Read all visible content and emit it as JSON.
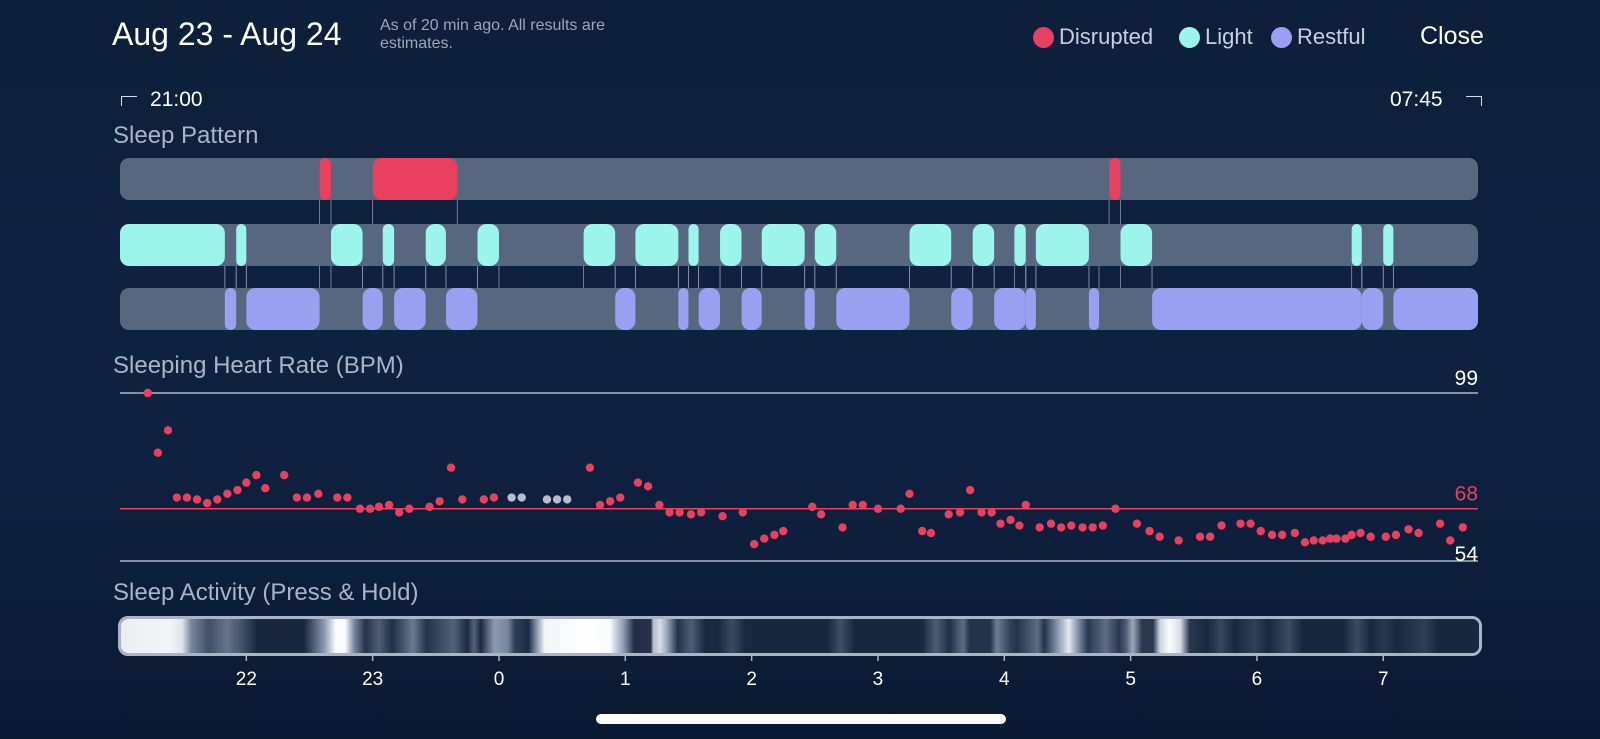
{
  "header": {
    "title": "Aug 23 - Aug 24",
    "note": "As of 20 min ago. All results are estimates.",
    "close_label": "Close"
  },
  "legend": [
    {
      "label": "Disrupted",
      "color": "#e8405e"
    },
    {
      "label": "Light",
      "color": "#9cf5ea"
    },
    {
      "label": "Restful",
      "color": "#9aa0ef"
    }
  ],
  "time_range": {
    "start": "21:00",
    "end": "07:45"
  },
  "sections": {
    "sleep_pattern": "Sleep Pattern",
    "heart_rate": "Sleeping Heart Rate (BPM)",
    "activity": "Sleep Activity (Press & Hold)"
  },
  "chart_data": [
    {
      "type": "timeline",
      "title": "Sleep Pattern",
      "x_range": [
        21.0,
        31.75
      ],
      "rows": [
        {
          "name": "Disrupted",
          "color": "#e8405e",
          "intervals": [
            [
              22.58,
              22.67
            ],
            [
              23.0,
              23.67
            ],
            [
              28.83,
              28.92
            ]
          ]
        },
        {
          "name": "Light",
          "color": "#9cf5ea",
          "intervals": [
            [
              21.0,
              21.83
            ],
            [
              21.92,
              22.0
            ],
            [
              22.67,
              22.92
            ],
            [
              23.08,
              23.17
            ],
            [
              23.42,
              23.58
            ],
            [
              23.83,
              24.0
            ],
            [
              24.67,
              24.92
            ],
            [
              25.08,
              25.42
            ],
            [
              25.5,
              25.58
            ],
            [
              25.75,
              25.92
            ],
            [
              26.08,
              26.42
            ],
            [
              26.5,
              26.67
            ],
            [
              27.25,
              27.58
            ],
            [
              27.75,
              27.92
            ],
            [
              28.08,
              28.17
            ],
            [
              28.25,
              28.67
            ],
            [
              28.92,
              29.17
            ],
            [
              30.75,
              30.83
            ],
            [
              31.0,
              31.08
            ]
          ]
        },
        {
          "name": "Restful",
          "color": "#9aa0ef",
          "intervals": [
            [
              21.83,
              21.92
            ],
            [
              22.0,
              22.58
            ],
            [
              22.92,
              23.08
            ],
            [
              23.17,
              23.42
            ],
            [
              23.58,
              23.83
            ],
            [
              24.92,
              25.08
            ],
            [
              25.42,
              25.5
            ],
            [
              25.58,
              25.75
            ],
            [
              25.92,
              26.08
            ],
            [
              26.42,
              26.5
            ],
            [
              26.67,
              27.25
            ],
            [
              27.58,
              27.75
            ],
            [
              27.92,
              28.17
            ],
            [
              28.17,
              28.25
            ],
            [
              28.67,
              28.75
            ],
            [
              29.17,
              30.83
            ],
            [
              30.83,
              31.0
            ],
            [
              31.08,
              31.75
            ]
          ]
        }
      ]
    },
    {
      "type": "scatter",
      "title": "Sleeping Heart Rate (BPM)",
      "x_range": [
        21.0,
        31.75
      ],
      "ylim": [
        54,
        99
      ],
      "reference_lines": [
        {
          "value": 99,
          "label": "99",
          "color": "#aab4c6"
        },
        {
          "value": 68,
          "label": "68",
          "color": "#e8405e"
        },
        {
          "value": 54,
          "label": "54",
          "color": "#aab4c6"
        }
      ],
      "x_ticks": [
        {
          "x": 22,
          "label": "22"
        },
        {
          "x": 23,
          "label": "23"
        },
        {
          "x": 24,
          "label": "0"
        },
        {
          "x": 25,
          "label": "1"
        },
        {
          "x": 26,
          "label": "2"
        },
        {
          "x": 27,
          "label": "3"
        },
        {
          "x": 28,
          "label": "4"
        },
        {
          "x": 29,
          "label": "5"
        },
        {
          "x": 30,
          "label": "6"
        },
        {
          "x": 31,
          "label": "7"
        }
      ],
      "colors": {
        "point": "#e8405e",
        "missing": "#b8bec8"
      },
      "points": [
        [
          21.22,
          99
        ],
        [
          21.3,
          83
        ],
        [
          21.38,
          89
        ],
        [
          21.45,
          71
        ],
        [
          21.53,
          71
        ],
        [
          21.61,
          70.5
        ],
        [
          21.69,
          69.5
        ],
        [
          21.77,
          70.5
        ],
        [
          21.85,
          72
        ],
        [
          21.93,
          73
        ],
        [
          22.0,
          75
        ],
        [
          22.08,
          77
        ],
        [
          22.15,
          73.5
        ],
        [
          22.3,
          77
        ],
        [
          22.4,
          71
        ],
        [
          22.48,
          71
        ],
        [
          22.57,
          72
        ],
        [
          22.72,
          71
        ],
        [
          22.8,
          71
        ],
        [
          22.9,
          68
        ],
        [
          22.98,
          68
        ],
        [
          23.05,
          68.5
        ],
        [
          23.13,
          69
        ],
        [
          23.21,
          67
        ],
        [
          23.29,
          68
        ],
        [
          23.45,
          68.5
        ],
        [
          23.53,
          70
        ],
        [
          23.62,
          79
        ],
        [
          23.71,
          70.5
        ],
        [
          23.88,
          70.5
        ],
        [
          23.96,
          71
        ],
        [
          24.72,
          79
        ],
        [
          24.8,
          69
        ],
        [
          24.88,
          70
        ],
        [
          24.96,
          71
        ],
        [
          25.1,
          75
        ],
        [
          25.18,
          74
        ],
        [
          25.27,
          69
        ],
        [
          25.35,
          67
        ],
        [
          25.43,
          67
        ],
        [
          25.52,
          66.5
        ],
        [
          25.6,
          67
        ],
        [
          25.77,
          66
        ],
        [
          25.93,
          67
        ],
        [
          26.02,
          58.5
        ],
        [
          26.1,
          60
        ],
        [
          26.18,
          61
        ],
        [
          26.25,
          62
        ],
        [
          26.48,
          68.5
        ],
        [
          26.55,
          66.5
        ],
        [
          26.72,
          63
        ],
        [
          26.8,
          69
        ],
        [
          26.88,
          69
        ],
        [
          27.0,
          68
        ],
        [
          27.18,
          68
        ],
        [
          27.25,
          72
        ],
        [
          27.35,
          62
        ],
        [
          27.42,
          61.5
        ],
        [
          27.56,
          66.5
        ],
        [
          27.65,
          67
        ],
        [
          27.73,
          73
        ],
        [
          27.82,
          67
        ],
        [
          27.9,
          67
        ],
        [
          27.97,
          64
        ],
        [
          28.05,
          65
        ],
        [
          28.12,
          63.5
        ],
        [
          28.17,
          69
        ],
        [
          28.28,
          63
        ],
        [
          28.37,
          64
        ],
        [
          28.45,
          63
        ],
        [
          28.53,
          63.5
        ],
        [
          28.62,
          63
        ],
        [
          28.7,
          63
        ],
        [
          28.78,
          63.5
        ],
        [
          28.88,
          68
        ],
        [
          29.05,
          64
        ],
        [
          29.15,
          62
        ],
        [
          29.23,
          60.5
        ],
        [
          29.38,
          59.5
        ],
        [
          29.55,
          60.5
        ],
        [
          29.63,
          60.5
        ],
        [
          29.72,
          63.5
        ],
        [
          29.87,
          64
        ],
        [
          29.95,
          64
        ],
        [
          30.03,
          62
        ],
        [
          30.12,
          61
        ],
        [
          30.2,
          61
        ],
        [
          30.3,
          61.5
        ],
        [
          30.38,
          59
        ],
        [
          30.45,
          59.5
        ],
        [
          30.52,
          59.5
        ],
        [
          30.58,
          60
        ],
        [
          30.63,
          60
        ],
        [
          30.7,
          60
        ],
        [
          30.75,
          61
        ],
        [
          30.82,
          61.5
        ],
        [
          30.9,
          60.5
        ],
        [
          31.02,
          60.5
        ],
        [
          31.1,
          61
        ],
        [
          31.2,
          62.5
        ],
        [
          31.28,
          61.5
        ],
        [
          31.45,
          64
        ],
        [
          31.53,
          59.5
        ],
        [
          31.63,
          63
        ]
      ],
      "missing_points": [
        [
          24.1,
          71
        ],
        [
          24.18,
          71
        ],
        [
          24.38,
          70.5
        ],
        [
          24.46,
          70.5
        ],
        [
          24.54,
          70.5
        ]
      ]
    },
    {
      "type": "heatmap",
      "title": "Sleep Activity (Press & Hold)",
      "x_range": [
        21.0,
        31.75
      ],
      "colors": {
        "low": "#0d1c33",
        "mid": "#8190a8",
        "high": "#ffffff"
      },
      "stops": [
        [
          0.0,
          0.92
        ],
        [
          0.035,
          0.95
        ],
        [
          0.045,
          0.88
        ],
        [
          0.052,
          0.45
        ],
        [
          0.065,
          0.22
        ],
        [
          0.078,
          0.38
        ],
        [
          0.09,
          0.22
        ],
        [
          0.1,
          0.05
        ],
        [
          0.135,
          0.05
        ],
        [
          0.15,
          0.55
        ],
        [
          0.158,
          0.98
        ],
        [
          0.165,
          0.98
        ],
        [
          0.172,
          0.45
        ],
        [
          0.18,
          0.1
        ],
        [
          0.19,
          0.28
        ],
        [
          0.2,
          0.08
        ],
        [
          0.215,
          0.4
        ],
        [
          0.225,
          0.1
        ],
        [
          0.245,
          0.3
        ],
        [
          0.255,
          0.06
        ],
        [
          0.26,
          0.3
        ],
        [
          0.265,
          0.06
        ],
        [
          0.275,
          0.55
        ],
        [
          0.285,
          0.45
        ],
        [
          0.29,
          0.15
        ],
        [
          0.3,
          0.06
        ],
        [
          0.3,
          0.06
        ],
        [
          0.305,
          0.45
        ],
        [
          0.305,
          0.45
        ],
        [
          0.312,
          0.95
        ],
        [
          0.33,
          0.98
        ],
        [
          0.345,
          1.0
        ],
        [
          0.36,
          0.98
        ],
        [
          0.37,
          0.55
        ],
        [
          0.378,
          0.08
        ],
        [
          0.39,
          0.1
        ],
        [
          0.392,
          0.7
        ],
        [
          0.397,
          0.85
        ],
        [
          0.402,
          0.6
        ],
        [
          0.41,
          0.1
        ],
        [
          0.42,
          0.28
        ],
        [
          0.43,
          0.06
        ],
        [
          0.44,
          0.06
        ],
        [
          0.45,
          0.2
        ],
        [
          0.46,
          0.05
        ],
        [
          0.52,
          0.05
        ],
        [
          0.53,
          0.22
        ],
        [
          0.54,
          0.05
        ],
        [
          0.59,
          0.05
        ],
        [
          0.6,
          0.28
        ],
        [
          0.61,
          0.08
        ],
        [
          0.62,
          0.35
        ],
        [
          0.625,
          0.1
        ],
        [
          0.64,
          0.1
        ],
        [
          0.645,
          0.42
        ],
        [
          0.655,
          0.15
        ],
        [
          0.66,
          0.1
        ],
        [
          0.675,
          0.35
        ],
        [
          0.68,
          0.1
        ],
        [
          0.69,
          0.55
        ],
        [
          0.698,
          0.9
        ],
        [
          0.704,
          0.55
        ],
        [
          0.712,
          0.12
        ],
        [
          0.725,
          0.35
        ],
        [
          0.735,
          0.12
        ],
        [
          0.74,
          0.28
        ],
        [
          0.745,
          0.6
        ],
        [
          0.752,
          0.12
        ],
        [
          0.76,
          0.12
        ],
        [
          0.765,
          0.8
        ],
        [
          0.772,
          0.98
        ],
        [
          0.78,
          0.85
        ],
        [
          0.787,
          0.12
        ],
        [
          0.8,
          0.05
        ],
        [
          0.81,
          0.18
        ],
        [
          0.82,
          0.05
        ],
        [
          0.835,
          0.15
        ],
        [
          0.845,
          0.05
        ],
        [
          0.86,
          0.2
        ],
        [
          0.87,
          0.05
        ],
        [
          0.9,
          0.05
        ],
        [
          0.91,
          0.2
        ],
        [
          0.92,
          0.05
        ],
        [
          0.93,
          0.12
        ],
        [
          0.94,
          0.05
        ],
        [
          0.96,
          0.15
        ],
        [
          0.97,
          0.05
        ],
        [
          1.0,
          0.05
        ]
      ]
    }
  ]
}
